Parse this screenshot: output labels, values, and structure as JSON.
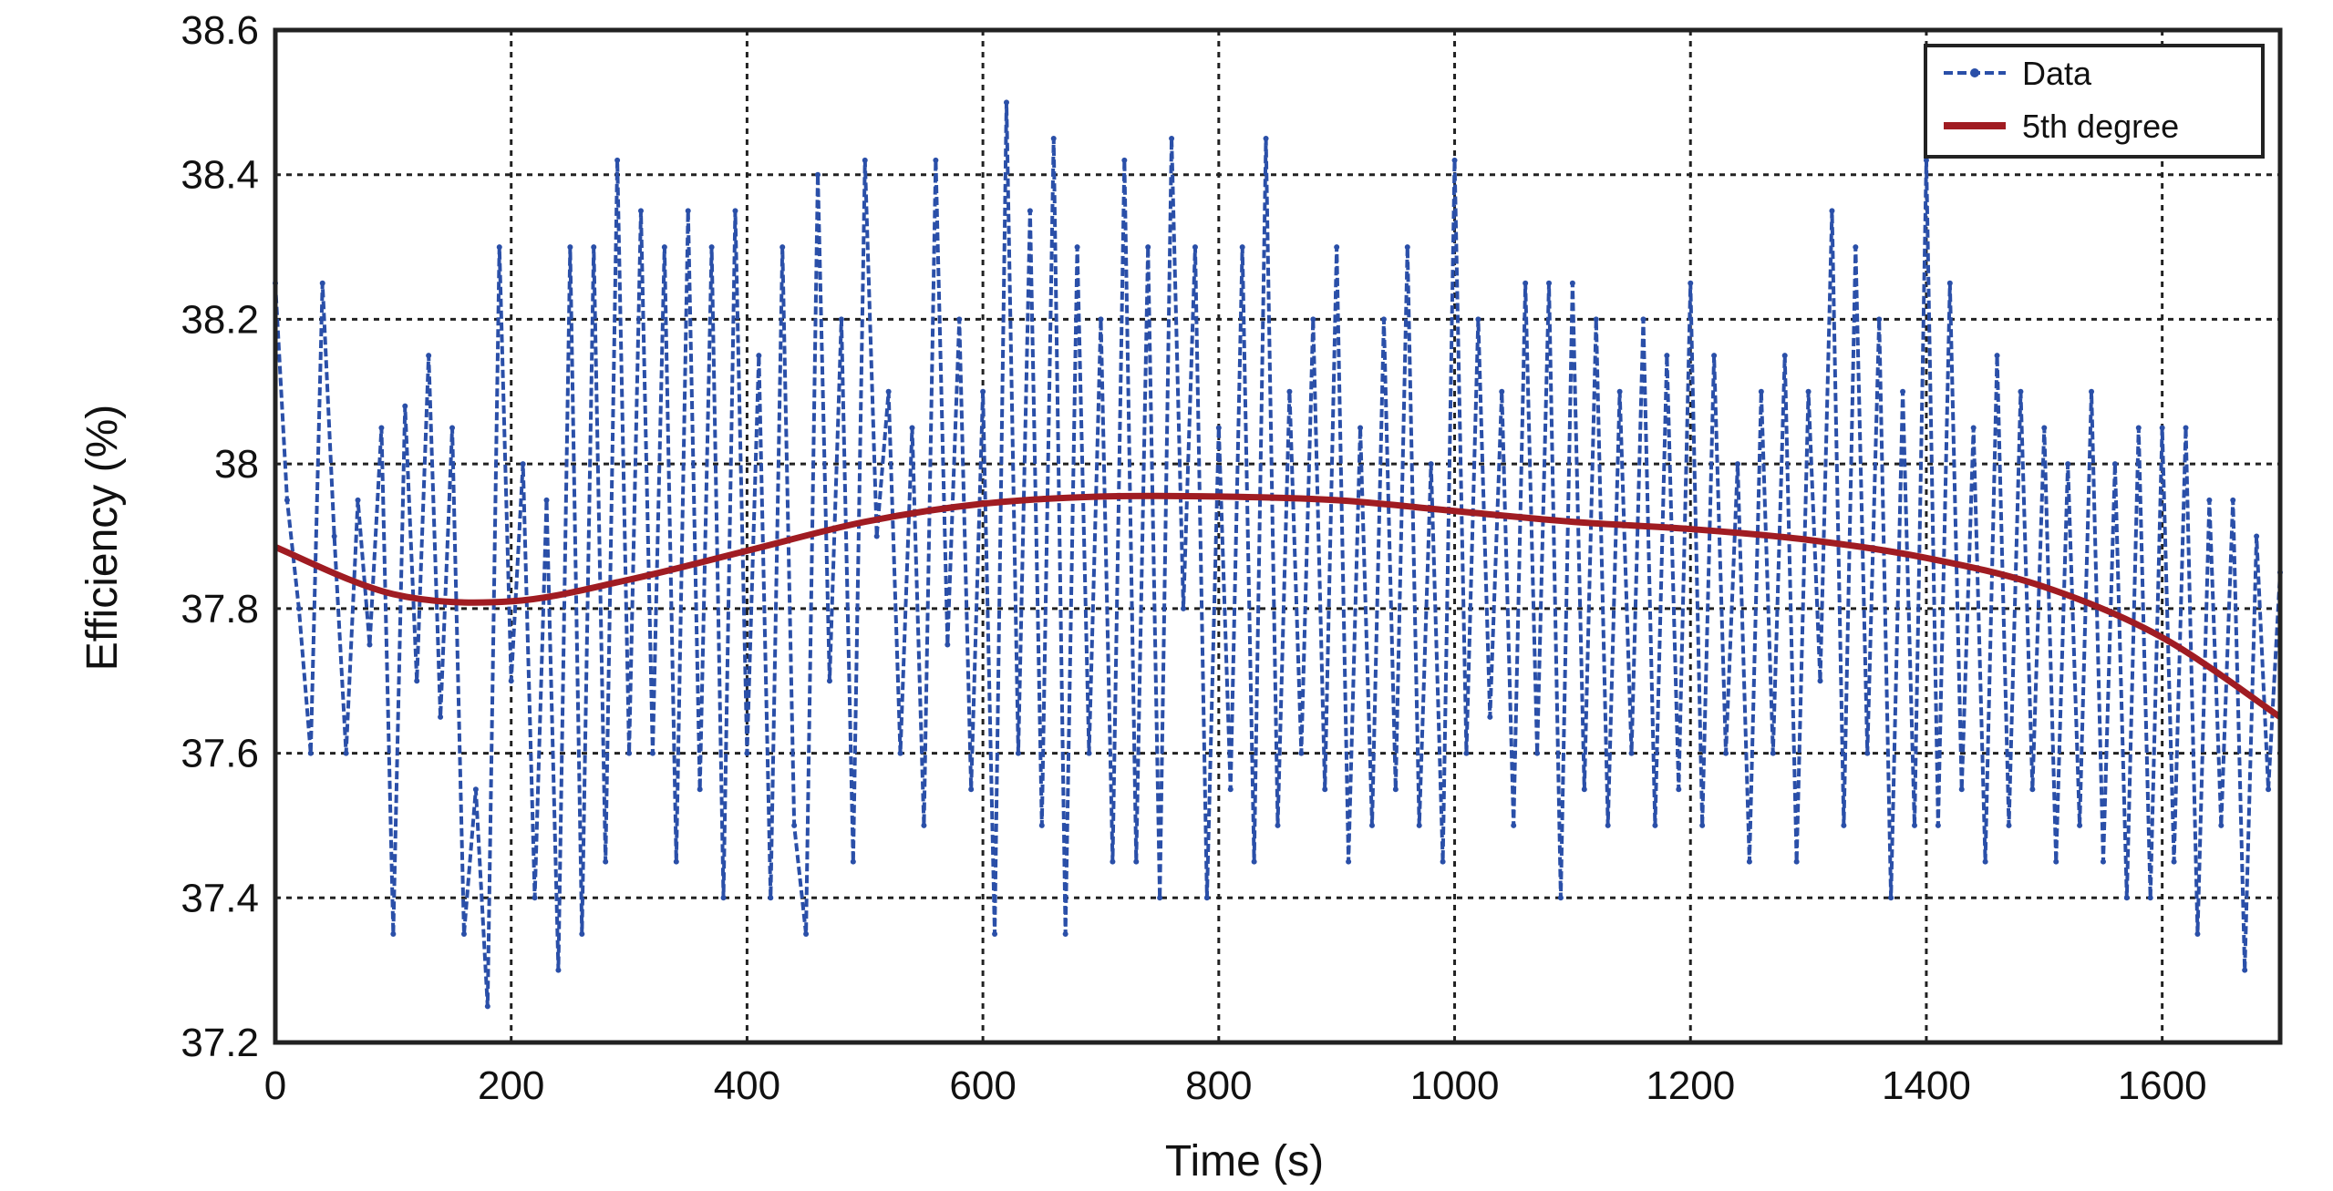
{
  "chart_data": {
    "type": "line",
    "title": "",
    "xlabel": "Time (s)",
    "ylabel": "Efficiency (%)",
    "xlim": [
      0,
      1700
    ],
    "ylim": [
      37.2,
      38.6
    ],
    "grid": true,
    "legend_position": "top-right",
    "x_ticks": [
      "0",
      "200",
      "400",
      "600",
      "800",
      "1000",
      "1200",
      "1400",
      "1600"
    ],
    "x_tick_values": [
      0,
      200,
      400,
      600,
      800,
      1000,
      1200,
      1400,
      1600
    ],
    "y_ticks": [
      "37.2",
      "37.4",
      "37.6",
      "37.8",
      "38",
      "38.2",
      "38.4",
      "38.6"
    ],
    "y_tick_values": [
      37.2,
      37.4,
      37.6,
      37.8,
      38.0,
      38.2,
      38.4,
      38.6
    ],
    "series": [
      {
        "name": "Data",
        "style": "dashed-marker",
        "color": "#2a4fa8",
        "x_start": 0,
        "x_step": 10,
        "values": [
          38.25,
          37.95,
          37.8,
          37.6,
          38.25,
          37.9,
          37.6,
          37.95,
          37.75,
          38.05,
          37.35,
          38.08,
          37.7,
          38.15,
          37.65,
          38.05,
          37.35,
          37.55,
          37.25,
          38.3,
          37.7,
          38.0,
          37.4,
          37.95,
          37.3,
          38.3,
          37.35,
          38.3,
          37.45,
          38.42,
          37.6,
          38.35,
          37.6,
          38.3,
          37.45,
          38.35,
          37.55,
          38.3,
          37.4,
          38.35,
          37.6,
          38.15,
          37.4,
          38.3,
          37.5,
          37.35,
          38.4,
          37.7,
          38.2,
          37.45,
          38.42,
          37.9,
          38.1,
          37.6,
          38.05,
          37.5,
          38.42,
          37.75,
          38.2,
          37.55,
          38.1,
          37.35,
          38.5,
          37.6,
          38.35,
          37.5,
          38.45,
          37.35,
          38.3,
          37.6,
          38.2,
          37.45,
          38.42,
          37.45,
          38.3,
          37.4,
          38.45,
          37.8,
          38.3,
          37.4,
          38.05,
          37.55,
          38.3,
          37.45,
          38.45,
          37.5,
          38.1,
          37.6,
          38.2,
          37.55,
          38.3,
          37.45,
          38.05,
          37.5,
          38.2,
          37.55,
          38.3,
          37.5,
          38.0,
          37.45,
          38.42,
          37.6,
          38.2,
          37.65,
          38.1,
          37.5,
          38.25,
          37.6,
          38.25,
          37.4,
          38.25,
          37.55,
          38.2,
          37.5,
          38.1,
          37.6,
          38.2,
          37.5,
          38.15,
          37.55,
          38.25,
          37.5,
          38.15,
          37.6,
          38.0,
          37.45,
          38.1,
          37.6,
          38.15,
          37.45,
          38.1,
          37.7,
          38.35,
          37.5,
          38.3,
          37.6,
          38.2,
          37.4,
          38.1,
          37.5,
          38.42,
          37.5,
          38.25,
          37.55,
          38.05,
          37.45,
          38.15,
          37.5,
          38.1,
          37.55,
          38.05,
          37.45,
          38.0,
          37.5,
          38.1,
          37.45,
          38.0,
          37.4,
          38.05,
          37.4,
          38.05,
          37.45,
          38.05,
          37.35,
          37.95,
          37.5,
          37.95,
          37.3,
          37.9,
          37.55,
          37.85
        ]
      },
      {
        "name": "5th degree",
        "style": "solid",
        "color": "#a01c22",
        "x": [
          0,
          100,
          200,
          300,
          400,
          500,
          600,
          700,
          800,
          900,
          1000,
          1100,
          1200,
          1300,
          1400,
          1500,
          1600,
          1700
        ],
        "values": [
          37.885,
          37.82,
          37.81,
          37.84,
          37.88,
          37.92,
          37.945,
          37.955,
          37.955,
          37.95,
          37.935,
          37.92,
          37.91,
          37.895,
          37.87,
          37.83,
          37.76,
          37.65
        ]
      }
    ]
  }
}
